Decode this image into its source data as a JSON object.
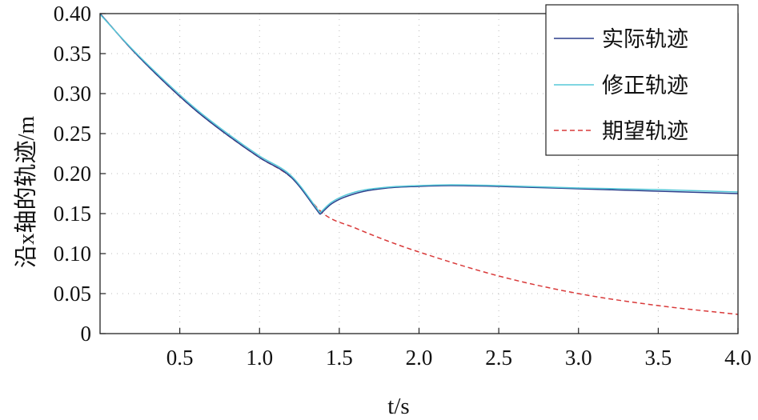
{
  "chart_data": {
    "type": "line",
    "xlabel": "t/s",
    "ylabel": "沿x轴的轨迹/m",
    "xlim": [
      0,
      4.0
    ],
    "ylim": [
      0,
      0.4
    ],
    "x_ticks": [
      0.5,
      1.0,
      1.5,
      2.0,
      2.5,
      3.0,
      3.5,
      4.0
    ],
    "x_tick_labels": [
      "0.5",
      "1.0",
      "1.5",
      "2.0",
      "2.5",
      "3.0",
      "3.5",
      "4.0"
    ],
    "y_ticks": [
      0,
      0.05,
      0.1,
      0.15,
      0.2,
      0.25,
      0.3,
      0.35,
      0.4
    ],
    "y_tick_labels": [
      "0",
      "0.05",
      "0.10",
      "0.15",
      "0.20",
      "0.25",
      "0.30",
      "0.35",
      "0.40"
    ],
    "grid": "dotted",
    "legend_position": "top-right",
    "series": [
      {
        "name": "实际轨迹",
        "color": "#2b3f8c",
        "style": "solid",
        "x": [
          0,
          0.2,
          0.4,
          0.6,
          0.8,
          1.0,
          1.2,
          1.38,
          1.45,
          1.6,
          1.8,
          2.0,
          2.2,
          2.5,
          3.0,
          3.5,
          4.0
        ],
        "y": [
          0.4,
          0.355,
          0.315,
          0.279,
          0.248,
          0.22,
          0.195,
          0.149,
          0.162,
          0.175,
          0.182,
          0.184,
          0.185,
          0.184,
          0.181,
          0.178,
          0.175
        ]
      },
      {
        "name": "修正轨迹",
        "color": "#56c8d8",
        "style": "solid",
        "x": [
          0,
          0.2,
          0.4,
          0.6,
          0.8,
          1.0,
          1.2,
          1.38,
          1.45,
          1.6,
          1.8,
          2.0,
          2.2,
          2.5,
          3.0,
          3.5,
          4.0
        ],
        "y": [
          0.399,
          0.356,
          0.317,
          0.281,
          0.25,
          0.222,
          0.197,
          0.151,
          0.164,
          0.177,
          0.183,
          0.185,
          0.186,
          0.185,
          0.182,
          0.18,
          0.177
        ]
      },
      {
        "name": "期望轨迹",
        "color": "#d93a3a",
        "style": "dashed",
        "x": [
          0,
          0.2,
          0.4,
          0.6,
          0.8,
          1.0,
          1.2,
          1.4,
          1.6,
          1.8,
          2.0,
          2.5,
          3.0,
          3.5,
          4.0
        ],
        "y": [
          0.4,
          0.355,
          0.315,
          0.279,
          0.248,
          0.22,
          0.195,
          0.15,
          0.132,
          0.116,
          0.102,
          0.072,
          0.05,
          0.035,
          0.024
        ]
      }
    ]
  }
}
